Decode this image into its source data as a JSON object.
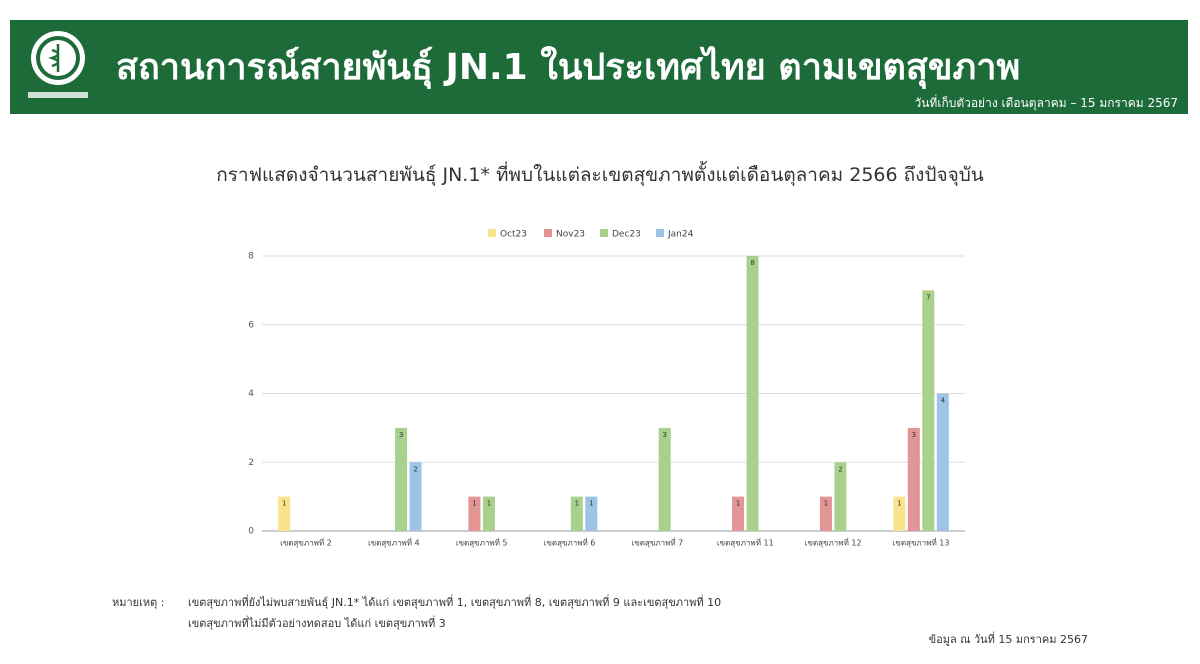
{
  "header": {
    "title": "สถานการณ์สายพันธุ์ JN.1 ในประเทศไทย ตามเขตสุขภาพ",
    "subtitle": "วันที่เก็บตัวอย่าง เดือนตุลาคม – 15 มกราคม 2567"
  },
  "chart_data": {
    "type": "bar",
    "title": "กราฟแสดงจำนวนสายพันธุ์ JN.1* ที่พบในแต่ละเขตสุขภาพตั้งแต่เดือนตุลาคม 2566 ถึงปัจจุบัน",
    "categories": [
      "เขตสุขภาพที่ 2",
      "เขตสุขภาพที่ 4",
      "เขตสุขภาพที่ 5",
      "เขตสุขภาพที่ 6",
      "เขตสุขภาพที่ 7",
      "เขตสุขภาพที่ 11",
      "เขตสุขภาพที่ 12",
      "เขตสุขภาพที่ 13"
    ],
    "series": [
      {
        "name": "Oct23",
        "color": "#fbe38e",
        "values": [
          1,
          null,
          null,
          null,
          null,
          null,
          null,
          1
        ]
      },
      {
        "name": "Nov23",
        "color": "#e39494",
        "values": [
          null,
          null,
          1,
          null,
          null,
          1,
          1,
          3
        ]
      },
      {
        "name": "Dec23",
        "color": "#a9d18e",
        "values": [
          null,
          3,
          1,
          1,
          3,
          8,
          2,
          7
        ]
      },
      {
        "name": "Jan24",
        "color": "#9dc3e6",
        "values": [
          null,
          2,
          null,
          1,
          null,
          null,
          null,
          4
        ]
      }
    ],
    "ylim": [
      0,
      8
    ],
    "yticks": [
      0,
      2,
      4,
      6,
      8
    ],
    "grid": true,
    "legend": "top"
  },
  "notes": {
    "label": "หมายเหตุ :",
    "lines": [
      "เขตสุขภาพที่ยังไม่พบสายพันธุ์ JN.1* ได้แก่ เขตสุขภาพที่ 1, เขตสุขภาพที่ 8, เขตสุขภาพที่ 9 และเขตสุขภาพที่ 10",
      "เขตสุขภาพที่ไม่มีตัวอย่างทดสอบ ได้แก่ เขตสุขภาพที่ 3"
    ]
  },
  "footer": "ข้อมูล ณ วันที่ 15 มกราคม 2567"
}
